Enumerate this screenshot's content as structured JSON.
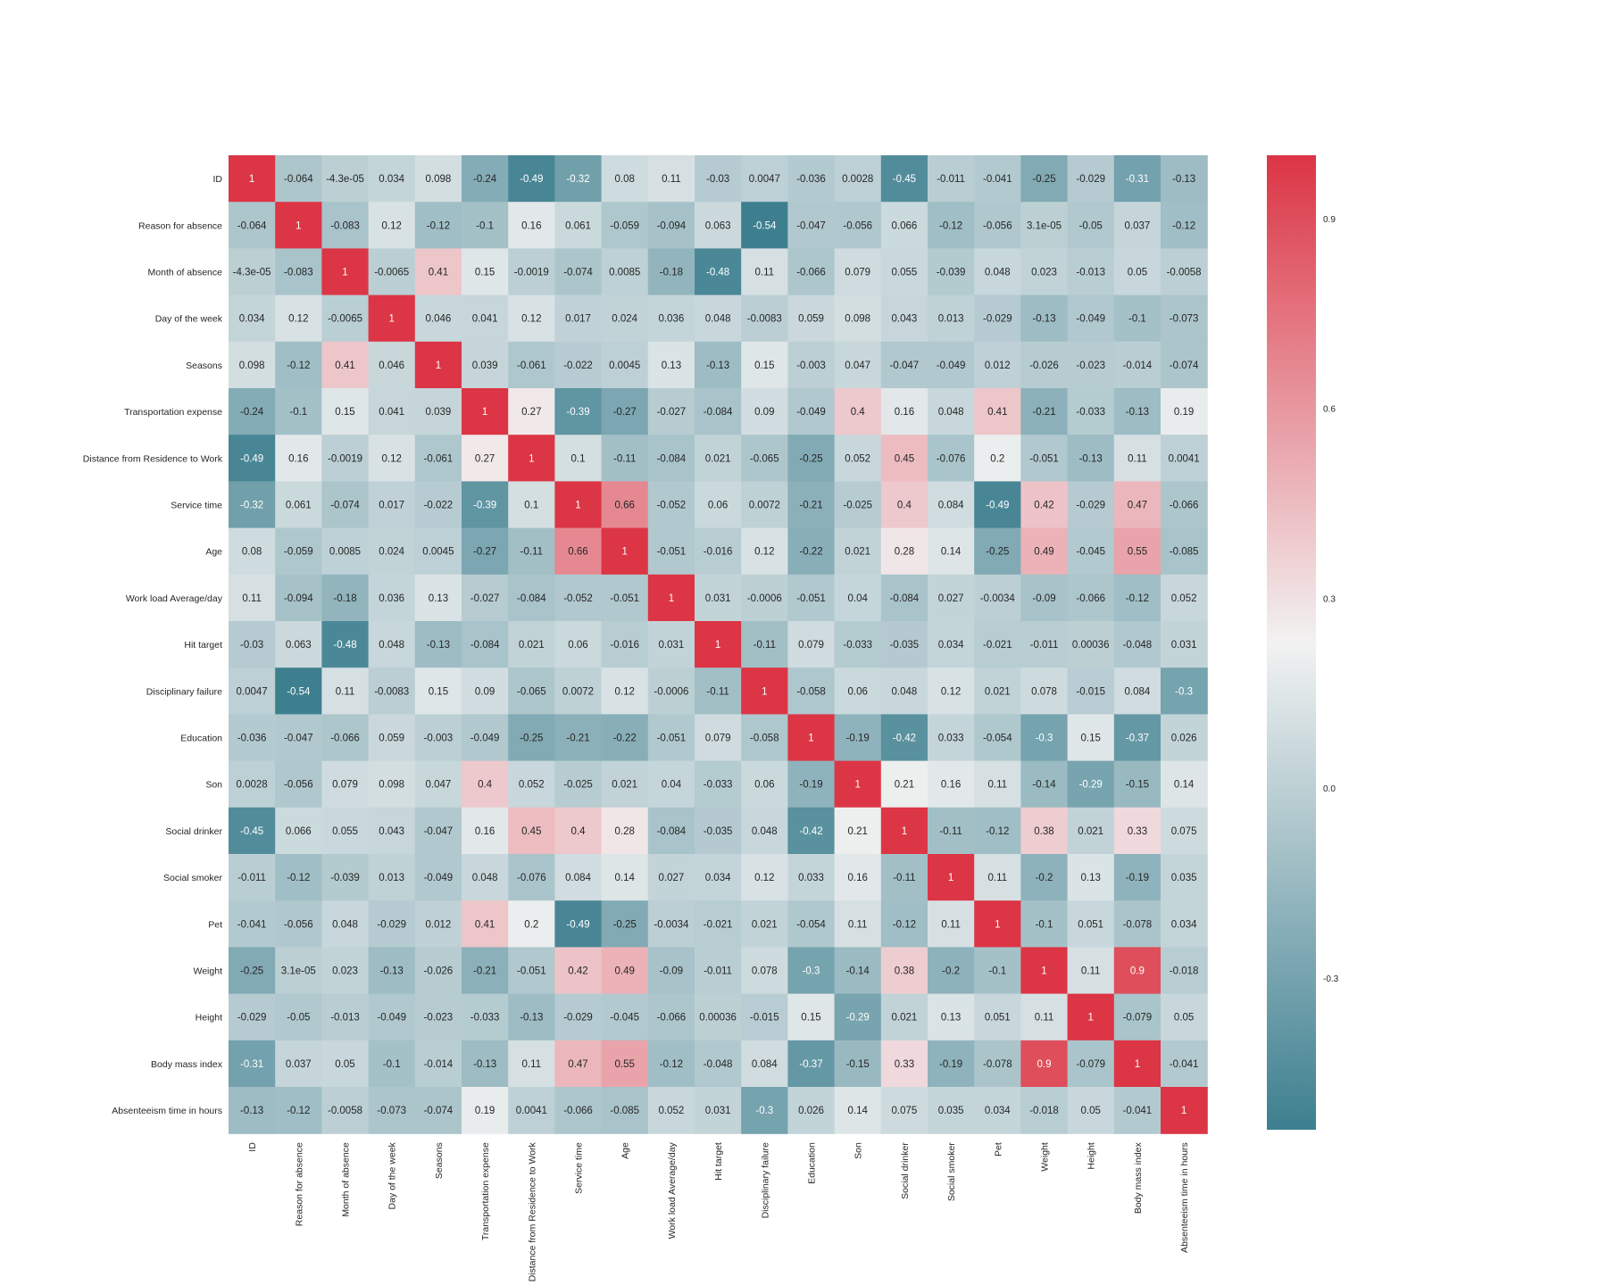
{
  "chart_data": {
    "type": "heatmap",
    "title": "",
    "xlabel": "",
    "ylabel": "",
    "labels": [
      "ID",
      "Reason for absence",
      "Month of absence",
      "Day of the week",
      "Seasons",
      "Transportation expense",
      "Distance from Residence to Work",
      "Service time",
      "Age",
      "Work load Average/day ",
      "Hit target",
      "Disciplinary failure",
      "Education",
      "Son",
      "Social drinker",
      "Social smoker",
      "Pet",
      "Weight",
      "Height",
      "Body mass index",
      "Absenteeism time in hours"
    ],
    "values": [
      [
        "1",
        "-0.064",
        "-4.3e-05",
        "0.034",
        "0.098",
        "-0.24",
        "-0.49",
        "-0.32",
        "0.08",
        "0.11",
        "-0.03",
        "0.0047",
        "-0.036",
        "0.0028",
        "-0.45",
        "-0.011",
        "-0.041",
        "-0.25",
        "-0.029",
        "-0.31",
        "-0.13"
      ],
      [
        "-0.064",
        "1",
        "-0.083",
        "0.12",
        "-0.12",
        "-0.1",
        "0.16",
        "0.061",
        "-0.059",
        "-0.094",
        "0.063",
        "-0.54",
        "-0.047",
        "-0.056",
        "0.066",
        "-0.12",
        "-0.056",
        "3.1e-05",
        "-0.05",
        "0.037",
        "-0.12"
      ],
      [
        "-4.3e-05",
        "-0.083",
        "1",
        "-0.0065",
        "0.41",
        "0.15",
        "-0.0019",
        "-0.074",
        "0.0085",
        "-0.18",
        "-0.48",
        "0.11",
        "-0.066",
        "0.079",
        "0.055",
        "-0.039",
        "0.048",
        "0.023",
        "-0.013",
        "0.05",
        "-0.0058"
      ],
      [
        "0.034",
        "0.12",
        "-0.0065",
        "1",
        "0.046",
        "0.041",
        "0.12",
        "0.017",
        "0.024",
        "0.036",
        "0.048",
        "-0.0083",
        "0.059",
        "0.098",
        "0.043",
        "0.013",
        "-0.029",
        "-0.13",
        "-0.049",
        "-0.1",
        "-0.073"
      ],
      [
        "0.098",
        "-0.12",
        "0.41",
        "0.046",
        "1",
        "0.039",
        "-0.061",
        "-0.022",
        "0.0045",
        "0.13",
        "-0.13",
        "0.15",
        "-0.003",
        "0.047",
        "-0.047",
        "-0.049",
        "0.012",
        "-0.026",
        "-0.023",
        "-0.014",
        "-0.074"
      ],
      [
        "-0.24",
        "-0.1",
        "0.15",
        "0.041",
        "0.039",
        "1",
        "0.27",
        "-0.39",
        "-0.27",
        "-0.027",
        "-0.084",
        "0.09",
        "-0.049",
        "0.4",
        "0.16",
        "0.048",
        "0.41",
        "-0.21",
        "-0.033",
        "-0.13",
        "0.19"
      ],
      [
        "-0.49",
        "0.16",
        "-0.0019",
        "0.12",
        "-0.061",
        "0.27",
        "1",
        "0.1",
        "-0.11",
        "-0.084",
        "0.021",
        "-0.065",
        "-0.25",
        "0.052",
        "0.45",
        "-0.076",
        "0.2",
        "-0.051",
        "-0.13",
        "0.11",
        "0.0041"
      ],
      [
        "-0.32",
        "0.061",
        "-0.074",
        "0.017",
        "-0.022",
        "-0.39",
        "0.1",
        "1",
        "0.66",
        "-0.052",
        "0.06",
        "0.0072",
        "-0.21",
        "-0.025",
        "0.4",
        "0.084",
        "-0.49",
        "0.42",
        "-0.029",
        "0.47",
        "-0.066"
      ],
      [
        "0.08",
        "-0.059",
        "0.0085",
        "0.024",
        "0.0045",
        "-0.27",
        "-0.11",
        "0.66",
        "1",
        "-0.051",
        "-0.016",
        "0.12",
        "-0.22",
        "0.021",
        "0.28",
        "0.14",
        "-0.25",
        "0.49",
        "-0.045",
        "0.55",
        "-0.085"
      ],
      [
        "0.11",
        "-0.094",
        "-0.18",
        "0.036",
        "0.13",
        "-0.027",
        "-0.084",
        "-0.052",
        "-0.051",
        "1",
        "0.031",
        "-0.0006",
        "-0.051",
        "0.04",
        "-0.084",
        "0.027",
        "-0.0034",
        "-0.09",
        "-0.066",
        "-0.12",
        "0.052"
      ],
      [
        "-0.03",
        "0.063",
        "-0.48",
        "0.048",
        "-0.13",
        "-0.084",
        "0.021",
        "0.06",
        "-0.016",
        "0.031",
        "1",
        "-0.11",
        "0.079",
        "-0.033",
        "-0.035",
        "0.034",
        "-0.021",
        "-0.011",
        "0.00036",
        "-0.048",
        "0.031"
      ],
      [
        "0.0047",
        "-0.54",
        "0.11",
        "-0.0083",
        "0.15",
        "0.09",
        "-0.065",
        "0.0072",
        "0.12",
        "-0.0006",
        "-0.11",
        "1",
        "-0.058",
        "0.06",
        "0.048",
        "0.12",
        "0.021",
        "0.078",
        "-0.015",
        "0.084",
        "-0.3"
      ],
      [
        "-0.036",
        "-0.047",
        "-0.066",
        "0.059",
        "-0.003",
        "-0.049",
        "-0.25",
        "-0.21",
        "-0.22",
        "-0.051",
        "0.079",
        "-0.058",
        "1",
        "-0.19",
        "-0.42",
        "0.033",
        "-0.054",
        "-0.3",
        "0.15",
        "-0.37",
        "0.026"
      ],
      [
        "0.0028",
        "-0.056",
        "0.079",
        "0.098",
        "0.047",
        "0.4",
        "0.052",
        "-0.025",
        "0.021",
        "0.04",
        "-0.033",
        "0.06",
        "-0.19",
        "1",
        "0.21",
        "0.16",
        "0.11",
        "-0.14",
        "-0.29",
        "-0.15",
        "0.14"
      ],
      [
        "-0.45",
        "0.066",
        "0.055",
        "0.043",
        "-0.047",
        "0.16",
        "0.45",
        "0.4",
        "0.28",
        "-0.084",
        "-0.035",
        "0.048",
        "-0.42",
        "0.21",
        "1",
        "-0.11",
        "-0.12",
        "0.38",
        "0.021",
        "0.33",
        "0.075"
      ],
      [
        "-0.011",
        "-0.12",
        "-0.039",
        "0.013",
        "-0.049",
        "0.048",
        "-0.076",
        "0.084",
        "0.14",
        "0.027",
        "0.034",
        "0.12",
        "0.033",
        "0.16",
        "-0.11",
        "1",
        "0.11",
        "-0.2",
        "0.13",
        "-0.19",
        "0.035"
      ],
      [
        "-0.041",
        "-0.056",
        "0.048",
        "-0.029",
        "0.012",
        "0.41",
        "0.2",
        "-0.49",
        "-0.25",
        "-0.0034",
        "-0.021",
        "0.021",
        "-0.054",
        "0.11",
        "-0.12",
        "0.11",
        "1",
        "-0.1",
        "0.051",
        "-0.078",
        "0.034"
      ],
      [
        "-0.25",
        "3.1e-05",
        "0.023",
        "-0.13",
        "-0.026",
        "-0.21",
        "-0.051",
        "0.42",
        "0.49",
        "-0.09",
        "-0.011",
        "0.078",
        "-0.3",
        "-0.14",
        "0.38",
        "-0.2",
        "-0.1",
        "1",
        "0.11",
        "0.9",
        "-0.018"
      ],
      [
        "-0.029",
        "-0.05",
        "-0.013",
        "-0.049",
        "-0.023",
        "-0.033",
        "-0.13",
        "-0.029",
        "-0.045",
        "-0.066",
        "0.00036",
        "-0.015",
        "0.15",
        "-0.29",
        "0.021",
        "0.13",
        "0.051",
        "0.11",
        "1",
        "-0.079",
        "0.05"
      ],
      [
        "-0.31",
        "0.037",
        "0.05",
        "-0.1",
        "-0.014",
        "-0.13",
        "0.11",
        "0.47",
        "0.55",
        "-0.12",
        "-0.048",
        "0.084",
        "-0.37",
        "-0.15",
        "0.33",
        "-0.19",
        "-0.078",
        "0.9",
        "-0.079",
        "1",
        "-0.041"
      ],
      [
        "-0.13",
        "-0.12",
        "-0.0058",
        "-0.073",
        "-0.074",
        "0.19",
        "0.0041",
        "-0.066",
        "-0.085",
        "0.052",
        "0.031",
        "-0.3",
        "0.026",
        "0.14",
        "0.075",
        "0.035",
        "0.034",
        "-0.018",
        "0.05",
        "-0.041",
        "1"
      ]
    ],
    "color_scale": {
      "min_value": -0.54,
      "center_value": 0.23,
      "max_value": 1.0,
      "low_color": "#3d7f8f",
      "center_color": "#f2f2f2",
      "high_color": "#dc3545"
    },
    "colorbar": {
      "ticks": [
        "0.9",
        "0.6",
        "0.3",
        "0.0",
        "-0.3"
      ],
      "tick_values": [
        0.9,
        0.6,
        0.3,
        0.0,
        -0.3
      ]
    },
    "grid": false,
    "legend": "colorbar-right"
  }
}
